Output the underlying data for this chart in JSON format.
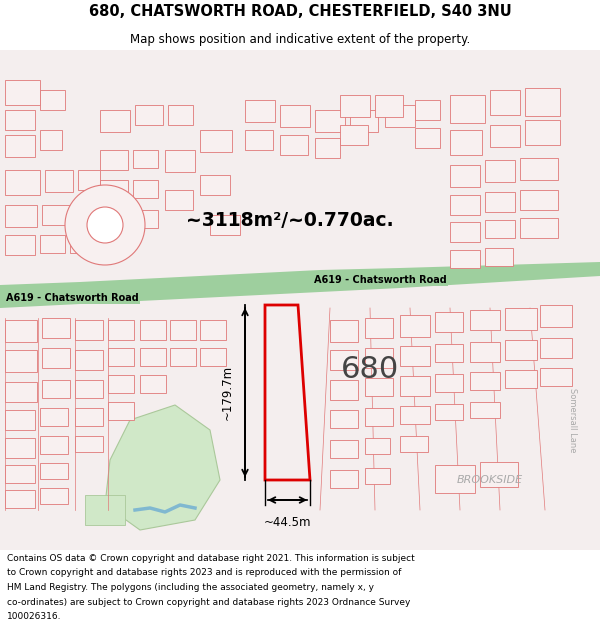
{
  "title_line1": "680, CHATSWORTH ROAD, CHESTERFIELD, S40 3NU",
  "title_line2": "Map shows position and indicative extent of the property.",
  "footer_lines": [
    "Contains OS data © Crown copyright and database right 2021. This information is subject",
    "to Crown copyright and database rights 2023 and is reproduced with the permission of",
    "HM Land Registry. The polygons (including the associated geometry, namely x, y",
    "co-ordinates) are subject to Crown copyright and database rights 2023 Ordnance Survey",
    "100026316."
  ],
  "area_label": "~3118m²/~0.770ac.",
  "property_number": "680",
  "width_label": "~44.5m",
  "height_label": "~179.7m",
  "road_label_left": "A619 - Chatsworth Road",
  "road_label_right": "A619 - Chatsworth Road",
  "brookside_label": "BROOKSIDE",
  "somersall_label": "Somersall Lane",
  "map_bg": "#f7f1f1",
  "road_fill": "#9ecf9e",
  "road_edge": "#6aab6a",
  "building_color": "#f0b8b8",
  "building_edge": "#e07878",
  "highlight_color": "#dd0000",
  "black": "#000000",
  "gray_label": "#aaaaaa"
}
